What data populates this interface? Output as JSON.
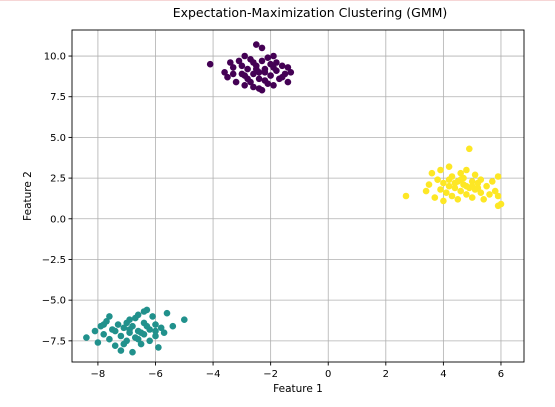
{
  "chart_data": {
    "type": "scatter",
    "title": "Expectation-Maximization Clustering (GMM)",
    "xlabel": "Feature 1",
    "ylabel": "Feature 2",
    "xlim": [
      -8.9,
      6.8
    ],
    "ylim": [
      -8.8,
      11.6
    ],
    "x_ticks": [
      -8,
      -6,
      -4,
      -2,
      0,
      2,
      4,
      6
    ],
    "x_tick_labels": [
      "−8",
      "−6",
      "−4",
      "−2",
      "0",
      "2",
      "4",
      "6"
    ],
    "y_ticks": [
      -7.5,
      -5.0,
      -2.5,
      0.0,
      2.5,
      5.0,
      7.5,
      10.0
    ],
    "y_tick_labels": [
      "−7.5",
      "−5.0",
      "−2.5",
      "0.0",
      "2.5",
      "5.0",
      "7.5",
      "10.0"
    ],
    "grid": true,
    "series": [
      {
        "color": "#440154",
        "points": [
          [
            -4.1,
            9.5
          ],
          [
            -3.6,
            9.0
          ],
          [
            -3.5,
            8.7
          ],
          [
            -3.3,
            9.3
          ],
          [
            -3.2,
            8.4
          ],
          [
            -3.1,
            9.7
          ],
          [
            -3.0,
            8.9
          ],
          [
            -2.9,
            8.2
          ],
          [
            -2.9,
            10.0
          ],
          [
            -2.8,
            9.2
          ],
          [
            -2.8,
            8.6
          ],
          [
            -2.7,
            9.8
          ],
          [
            -2.6,
            8.9
          ],
          [
            -2.6,
            8.1
          ],
          [
            -2.5,
            10.7
          ],
          [
            -2.5,
            9.4
          ],
          [
            -2.4,
            8.6
          ],
          [
            -2.4,
            9.0
          ],
          [
            -2.3,
            10.5
          ],
          [
            -2.3,
            9.7
          ],
          [
            -2.3,
            7.9
          ],
          [
            -2.2,
            9.2
          ],
          [
            -2.2,
            8.5
          ],
          [
            -2.1,
            9.9
          ],
          [
            -2.0,
            8.8
          ],
          [
            -2.0,
            9.5
          ],
          [
            -1.9,
            8.2
          ],
          [
            -1.9,
            10.0
          ],
          [
            -1.8,
            9.1
          ],
          [
            -1.7,
            8.6
          ],
          [
            -1.6,
            9.4
          ],
          [
            -1.5,
            8.9
          ],
          [
            -1.4,
            9.3
          ],
          [
            -1.4,
            8.4
          ],
          [
            -1.3,
            9.0
          ],
          [
            -3.4,
            9.6
          ],
          [
            -3.0,
            9.4
          ],
          [
            -2.7,
            8.4
          ],
          [
            -2.5,
            9.2
          ],
          [
            -2.1,
            8.3
          ],
          [
            -1.8,
            9.6
          ],
          [
            -2.9,
            8.8
          ],
          [
            -2.6,
            9.6
          ],
          [
            -2.2,
            9.0
          ],
          [
            -1.6,
            8.7
          ],
          [
            -3.3,
            8.9
          ],
          [
            -2.4,
            8.0
          ],
          [
            -1.9,
            9.3
          ]
        ]
      },
      {
        "color": "#21918c",
        "points": [
          [
            -8.4,
            -7.3
          ],
          [
            -8.1,
            -6.9
          ],
          [
            -8.0,
            -7.6
          ],
          [
            -7.9,
            -6.6
          ],
          [
            -7.8,
            -7.1
          ],
          [
            -7.7,
            -6.3
          ],
          [
            -7.6,
            -7.4
          ],
          [
            -7.6,
            -6.0
          ],
          [
            -7.5,
            -6.8
          ],
          [
            -7.4,
            -7.8
          ],
          [
            -7.3,
            -6.5
          ],
          [
            -7.2,
            -7.2
          ],
          [
            -7.2,
            -8.1
          ],
          [
            -7.1,
            -6.7
          ],
          [
            -7.0,
            -7.5
          ],
          [
            -6.9,
            -6.2
          ],
          [
            -6.9,
            -7.0
          ],
          [
            -6.8,
            -8.2
          ],
          [
            -6.8,
            -6.6
          ],
          [
            -6.7,
            -7.3
          ],
          [
            -6.6,
            -5.9
          ],
          [
            -6.6,
            -6.9
          ],
          [
            -6.5,
            -7.7
          ],
          [
            -6.4,
            -6.4
          ],
          [
            -6.4,
            -7.1
          ],
          [
            -6.3,
            -5.6
          ],
          [
            -6.2,
            -6.8
          ],
          [
            -6.2,
            -7.5
          ],
          [
            -6.1,
            -6.0
          ],
          [
            -6.0,
            -7.2
          ],
          [
            -6.0,
            -6.5
          ],
          [
            -5.9,
            -7.9
          ],
          [
            -5.8,
            -6.7
          ],
          [
            -5.7,
            -7.0
          ],
          [
            -5.6,
            -5.8
          ],
          [
            -5.4,
            -6.6
          ],
          [
            -5.0,
            -6.2
          ],
          [
            -7.4,
            -6.9
          ],
          [
            -7.0,
            -6.4
          ],
          [
            -6.7,
            -6.1
          ],
          [
            -6.5,
            -7.0
          ],
          [
            -6.3,
            -6.6
          ],
          [
            -7.1,
            -7.7
          ],
          [
            -6.6,
            -7.4
          ],
          [
            -6.0,
            -6.9
          ],
          [
            -7.8,
            -6.5
          ],
          [
            -6.9,
            -6.8
          ],
          [
            -6.4,
            -5.7
          ]
        ]
      },
      {
        "color": "#fde725",
        "points": [
          [
            2.7,
            1.4
          ],
          [
            3.4,
            1.7
          ],
          [
            3.5,
            2.1
          ],
          [
            3.6,
            2.8
          ],
          [
            3.7,
            1.3
          ],
          [
            3.8,
            2.4
          ],
          [
            3.9,
            1.8
          ],
          [
            3.9,
            3.0
          ],
          [
            4.0,
            1.1
          ],
          [
            4.0,
            2.2
          ],
          [
            4.1,
            1.6
          ],
          [
            4.2,
            3.2
          ],
          [
            4.2,
            2.0
          ],
          [
            4.3,
            1.4
          ],
          [
            4.3,
            2.6
          ],
          [
            4.4,
            1.9
          ],
          [
            4.5,
            2.3
          ],
          [
            4.5,
            1.2
          ],
          [
            4.6,
            2.8
          ],
          [
            4.6,
            1.7
          ],
          [
            4.7,
            2.1
          ],
          [
            4.7,
            2.5
          ],
          [
            4.8,
            1.5
          ],
          [
            4.8,
            3.0
          ],
          [
            4.9,
            1.9
          ],
          [
            4.9,
            4.3
          ],
          [
            5.0,
            2.3
          ],
          [
            5.0,
            1.3
          ],
          [
            5.1,
            2.7
          ],
          [
            5.1,
            1.8
          ],
          [
            5.2,
            2.2
          ],
          [
            5.3,
            1.6
          ],
          [
            5.3,
            2.4
          ],
          [
            5.4,
            1.2
          ],
          [
            5.5,
            2.0
          ],
          [
            5.6,
            1.5
          ],
          [
            5.7,
            2.3
          ],
          [
            5.8,
            1.7
          ],
          [
            5.9,
            2.6
          ],
          [
            5.9,
            1.4
          ],
          [
            6.0,
            0.9
          ],
          [
            5.9,
            0.8
          ],
          [
            4.4,
            2.2
          ],
          [
            4.6,
            2.4
          ],
          [
            4.8,
            2.0
          ],
          [
            5.0,
            2.0
          ],
          [
            4.2,
            2.4
          ],
          [
            5.2,
            1.9
          ]
        ]
      }
    ]
  }
}
